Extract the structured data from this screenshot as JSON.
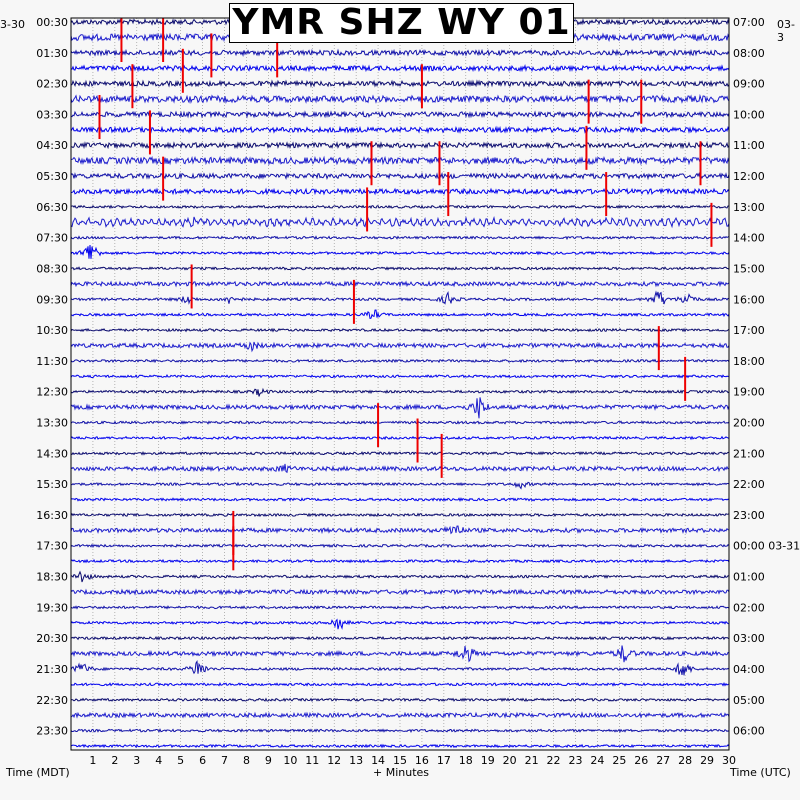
{
  "chart_data": {
    "type": "line",
    "title": "YMR SHZ WY 01",
    "xlabel": "+ Minutes",
    "ylabel_left": "Time (MDT)",
    "ylabel_right": "Time (UTC)",
    "date_left": "3-30",
    "date_right": "03-3",
    "x_ticks": [
      "1",
      "2",
      "3",
      "4",
      "5",
      "6",
      "7",
      "8",
      "9",
      "10",
      "11",
      "12",
      "13",
      "14",
      "15",
      "16",
      "17",
      "18",
      "19",
      "20",
      "21",
      "22",
      "23",
      "24",
      "25",
      "26",
      "27",
      "28",
      "29",
      "30"
    ],
    "xlim": [
      0,
      30
    ],
    "left_ticks": [
      "00:30",
      "01:30",
      "02:30",
      "03:30",
      "04:30",
      "05:30",
      "06:30",
      "07:30",
      "08:30",
      "09:30",
      "10:30",
      "11:30",
      "12:30",
      "13:30",
      "14:30",
      "15:30",
      "16:30",
      "17:30",
      "18:30",
      "19:30",
      "20:30",
      "21:30",
      "22:30",
      "23:30"
    ],
    "right_ticks": [
      "07:00",
      "08:00",
      "09:00",
      "10:00",
      "11:00",
      "12:00",
      "13:00",
      "14:00",
      "15:00",
      "16:00",
      "17:00",
      "18:00",
      "19:00",
      "20:00",
      "21:00",
      "22:00",
      "23:00",
      "00:00 03-31",
      "01:00",
      "02:00",
      "03:00",
      "04:00",
      "05:00",
      "06:00"
    ],
    "trace_count": 48,
    "trace_colors": [
      "#0a0a6e",
      "#1c1ccc",
      "#1010a8",
      "#0000ee"
    ],
    "clip_color": "#ee0000",
    "events": [
      {
        "trace": 15,
        "minute": 0.9,
        "amp": 16
      },
      {
        "trace": 13,
        "minute": 5.6,
        "amp": 6
      },
      {
        "trace": 18,
        "minute": 5.3,
        "amp": 5
      },
      {
        "trace": 18,
        "minute": 7.3,
        "amp": 6
      },
      {
        "trace": 19,
        "minute": 13.8,
        "amp": 6
      },
      {
        "trace": 18,
        "minute": 17.2,
        "amp": 7
      },
      {
        "trace": 18,
        "minute": 26.8,
        "amp": 12
      },
      {
        "trace": 18,
        "minute": 28.1,
        "amp": 9
      },
      {
        "trace": 21,
        "minute": 8.2,
        "amp": 5
      },
      {
        "trace": 25,
        "minute": 18.6,
        "amp": 13
      },
      {
        "trace": 24,
        "minute": 8.6,
        "amp": 4
      },
      {
        "trace": 29,
        "minute": 9.7,
        "amp": 4
      },
      {
        "trace": 30,
        "minute": 20.5,
        "amp": 4
      },
      {
        "trace": 33,
        "minute": 17.5,
        "amp": 9
      },
      {
        "trace": 36,
        "minute": 0.5,
        "amp": 8
      },
      {
        "trace": 39,
        "minute": 12.2,
        "amp": 10
      },
      {
        "trace": 42,
        "minute": 0.5,
        "amp": 8
      },
      {
        "trace": 42,
        "minute": 5.8,
        "amp": 12
      },
      {
        "trace": 41,
        "minute": 18.0,
        "amp": 12
      },
      {
        "trace": 41,
        "minute": 25.2,
        "amp": 10
      },
      {
        "trace": 42,
        "minute": 27.9,
        "amp": 12
      }
    ],
    "clipped_spikes": [
      {
        "trace": 0,
        "minute": 2.3
      },
      {
        "trace": 0,
        "minute": 4.2
      },
      {
        "trace": 1,
        "minute": 6.4
      },
      {
        "trace": 1,
        "minute": 9.4
      },
      {
        "trace": 2,
        "minute": 5.1
      },
      {
        "trace": 3,
        "minute": 2.8
      },
      {
        "trace": 3,
        "minute": 16.0
      },
      {
        "trace": 4,
        "minute": 23.6
      },
      {
        "trace": 4,
        "minute": 26.0
      },
      {
        "trace": 5,
        "minute": 1.3
      },
      {
        "trace": 6,
        "minute": 3.6
      },
      {
        "trace": 7,
        "minute": 23.5
      },
      {
        "trace": 8,
        "minute": 13.7
      },
      {
        "trace": 8,
        "minute": 16.8
      },
      {
        "trace": 8,
        "minute": 28.7
      },
      {
        "trace": 9,
        "minute": 4.2
      },
      {
        "trace": 10,
        "minute": 17.2
      },
      {
        "trace": 10,
        "minute": 24.4
      },
      {
        "trace": 11,
        "minute": 13.5
      },
      {
        "trace": 12,
        "minute": 29.2
      },
      {
        "trace": 16,
        "minute": 5.5
      },
      {
        "trace": 17,
        "minute": 12.9
      },
      {
        "trace": 20,
        "minute": 26.8
      },
      {
        "trace": 22,
        "minute": 28.0
      },
      {
        "trace": 25,
        "minute": 14.0
      },
      {
        "trace": 26,
        "minute": 15.8
      },
      {
        "trace": 27,
        "minute": 16.9
      },
      {
        "trace": 32,
        "minute": 7.4
      },
      {
        "trace": 33,
        "minute": 7.4
      }
    ]
  }
}
